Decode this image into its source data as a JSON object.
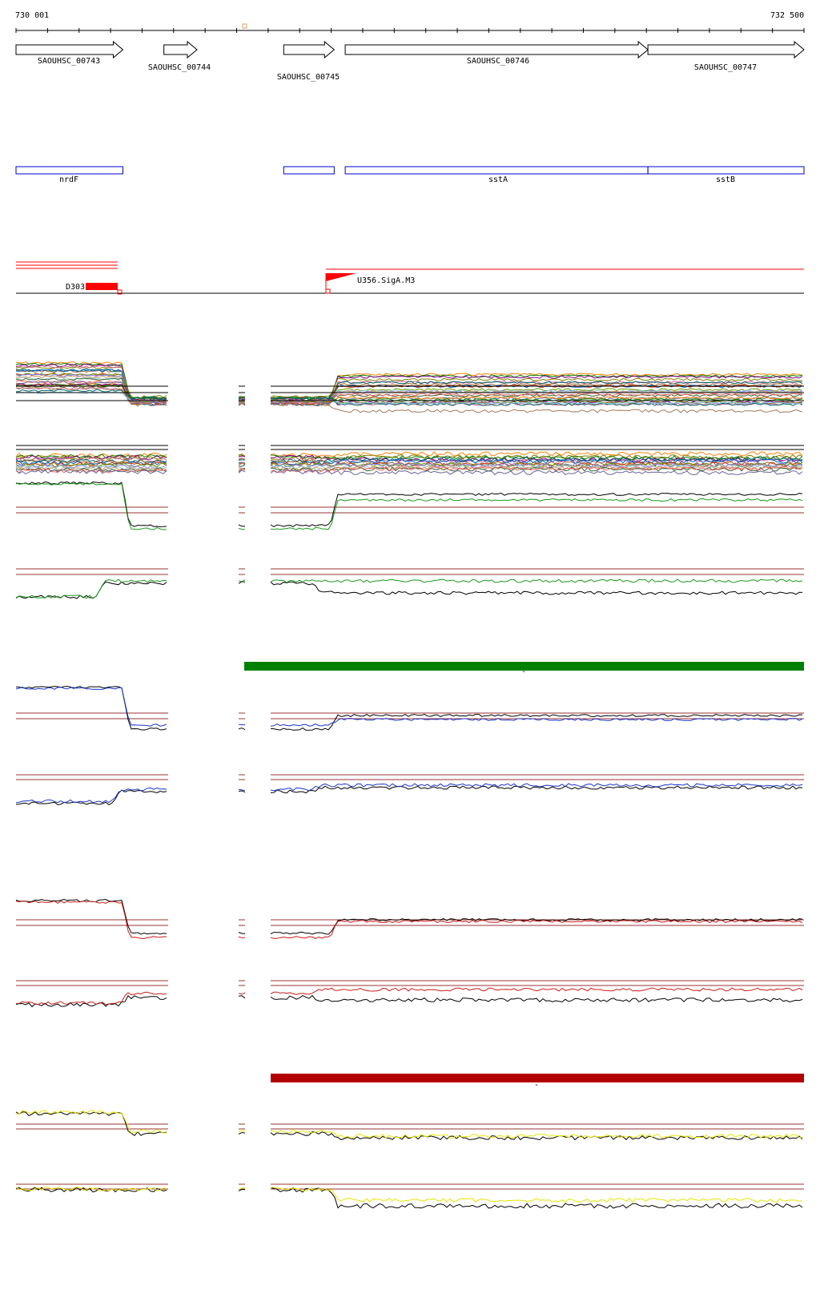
{
  "coordinates": {
    "start_label": "730 001",
    "end_label": "732 500",
    "start": 730001,
    "end": 732500
  },
  "genes": [
    {
      "id": "SAOUHSC_00743",
      "start": 730001,
      "end": 730340
    },
    {
      "id": "SAOUHSC_00744",
      "start": 730470,
      "end": 730575
    },
    {
      "id": "SAOUHSC_00745",
      "start": 730850,
      "end": 731010
    },
    {
      "id": "SAOUHSC_00746",
      "start": 731045,
      "end": 732005
    },
    {
      "id": "SAOUHSC_00747",
      "start": 732005,
      "end": 732500
    }
  ],
  "annotations": [
    {
      "label": "nrdF",
      "start": 730001,
      "end": 730340
    },
    {
      "label": "",
      "start": 730850,
      "end": 731010
    },
    {
      "label": "sstA",
      "start": 731045,
      "end": 732005
    },
    {
      "label": "sstB",
      "start": 732005,
      "end": 732500
    }
  ],
  "promoters": [
    {
      "label": "D303",
      "strand": "reverse"
    },
    {
      "label": "U356.SigA.M3",
      "strand": "forward"
    }
  ],
  "condition_bars": [
    {
      "color": "#008000",
      "label": "-"
    },
    {
      "color": "#b30000",
      "label": "-"
    }
  ],
  "colors": {
    "gene_outline": "#000000",
    "annotation": "#0000cc",
    "promoter": "#ff0000",
    "threshold": "#993333",
    "green": "#1a9a1a",
    "blue": "#1a33cc",
    "red": "#cc1a1a",
    "yellow": "#e6e600"
  }
}
